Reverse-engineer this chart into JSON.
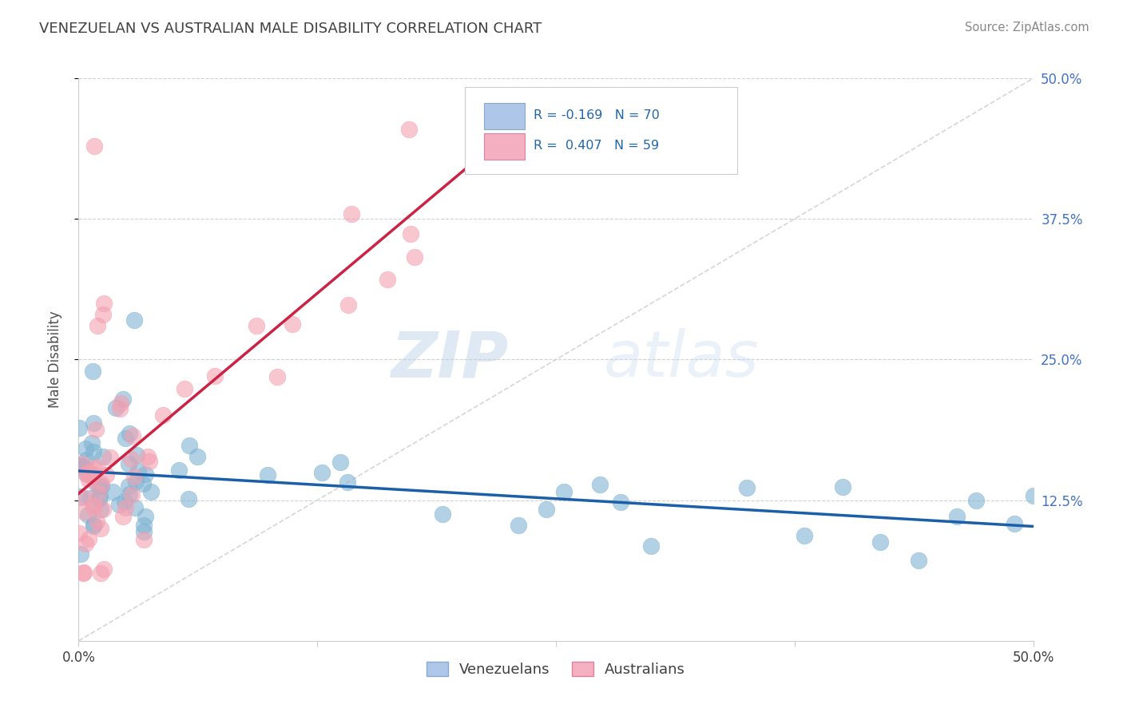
{
  "title": "VENEZUELAN VS AUSTRALIAN MALE DISABILITY CORRELATION CHART",
  "source": "Source: ZipAtlas.com",
  "ylabel": "Male Disability",
  "xmin": 0.0,
  "xmax": 0.5,
  "ymin": 0.0,
  "ymax": 0.5,
  "ytick_labels_right": [
    "50.0%",
    "37.5%",
    "25.0%",
    "12.5%"
  ],
  "yticks_right": [
    0.5,
    0.375,
    0.25,
    0.125
  ],
  "legend_label_venezuelans": "Venezuelans",
  "legend_label_australians": "Australians",
  "blue_scatter_color": "#7fb3d3",
  "pink_scatter_color": "#f4a0b0",
  "blue_line_color": "#1a5fa8",
  "pink_line_color": "#cc2244",
  "watermark_zip": "ZIP",
  "watermark_atlas": "atlas",
  "R_venezuelans": -0.169,
  "N_venezuelans": 70,
  "R_australians": 0.407,
  "N_australians": 59,
  "background_color": "#ffffff",
  "grid_color": "#cccccc",
  "title_color": "#404040",
  "right_tick_color": "#4472c4"
}
